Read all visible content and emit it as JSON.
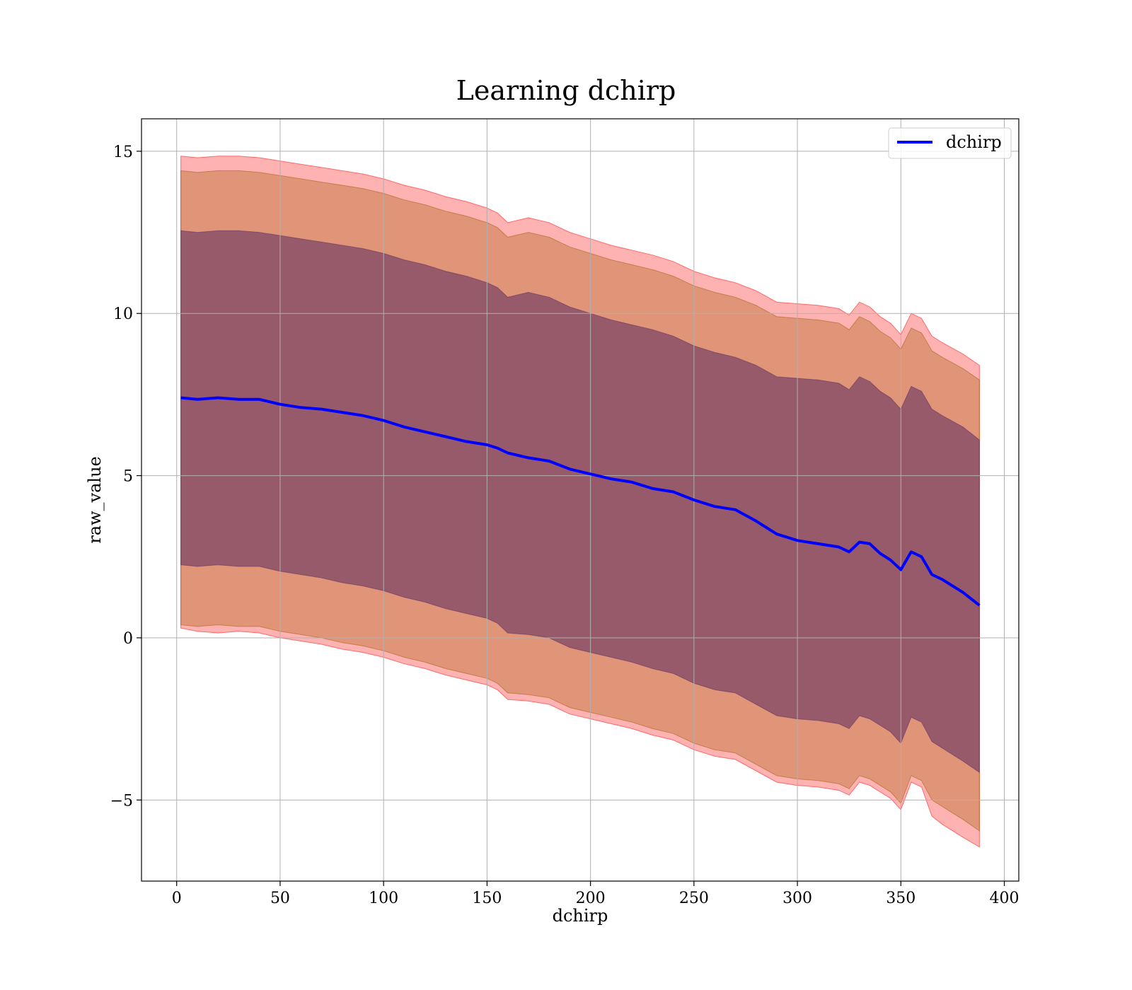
{
  "chart_data": {
    "type": "line",
    "title": "Learning dchirp",
    "xlabel": "dchirp",
    "ylabel": "raw_value",
    "xlim": [
      -17,
      407
    ],
    "ylim": [
      -7.5,
      16
    ],
    "xticks": [
      0,
      50,
      100,
      150,
      200,
      250,
      300,
      350,
      400
    ],
    "xtick_labels": [
      "0",
      "50",
      "100",
      "150",
      "200",
      "250",
      "300",
      "350",
      "400"
    ],
    "yticks": [
      -5,
      0,
      5,
      10,
      15
    ],
    "ytick_labels": [
      "−5",
      "0",
      "5",
      "10",
      "15"
    ],
    "grid": true,
    "legend": {
      "position": "top-right",
      "entries": [
        "dchirp"
      ]
    },
    "colors": {
      "line": "#0000ff",
      "outer_band": "#ff0000",
      "middle_band": "#a05a00",
      "inner_band": "#5a2a60"
    },
    "series": [
      {
        "name": "dchirp",
        "x": [
          2,
          10,
          20,
          30,
          40,
          50,
          60,
          70,
          80,
          90,
          100,
          110,
          120,
          130,
          140,
          150,
          155,
          160,
          170,
          180,
          190,
          200,
          210,
          220,
          230,
          240,
          250,
          260,
          270,
          280,
          290,
          300,
          310,
          320,
          325,
          330,
          335,
          340,
          345,
          350,
          355,
          360,
          365,
          370,
          380,
          388
        ],
        "mean": [
          7.4,
          7.35,
          7.4,
          7.35,
          7.35,
          7.2,
          7.1,
          7.05,
          6.95,
          6.85,
          6.7,
          6.5,
          6.35,
          6.2,
          6.05,
          5.95,
          5.85,
          5.7,
          5.55,
          5.45,
          5.2,
          5.05,
          4.9,
          4.8,
          4.6,
          4.5,
          4.25,
          4.05,
          3.95,
          3.6,
          3.2,
          3.0,
          2.9,
          2.8,
          2.65,
          2.95,
          2.9,
          2.6,
          2.4,
          2.1,
          2.65,
          2.5,
          1.95,
          1.8,
          1.4,
          1.0
        ]
      }
    ],
    "bands": [
      {
        "level": "outer",
        "x": [
          2,
          10,
          20,
          30,
          40,
          50,
          60,
          70,
          80,
          90,
          100,
          110,
          120,
          130,
          140,
          150,
          155,
          160,
          170,
          180,
          190,
          200,
          210,
          220,
          230,
          240,
          250,
          260,
          270,
          280,
          290,
          300,
          310,
          320,
          325,
          330,
          335,
          340,
          345,
          350,
          355,
          360,
          365,
          370,
          380,
          388
        ],
        "upper": [
          14.85,
          14.8,
          14.85,
          14.85,
          14.8,
          14.7,
          14.6,
          14.5,
          14.4,
          14.3,
          14.15,
          13.95,
          13.8,
          13.6,
          13.45,
          13.25,
          13.1,
          12.8,
          12.95,
          12.8,
          12.5,
          12.3,
          12.1,
          11.95,
          11.8,
          11.6,
          11.3,
          11.1,
          10.95,
          10.7,
          10.35,
          10.3,
          10.25,
          10.15,
          9.95,
          10.35,
          10.2,
          9.9,
          9.7,
          9.35,
          10.0,
          9.85,
          9.3,
          9.1,
          8.75,
          8.4
        ],
        "lower": [
          0.3,
          0.2,
          0.15,
          0.2,
          0.15,
          0.0,
          -0.1,
          -0.2,
          -0.35,
          -0.45,
          -0.6,
          -0.8,
          -0.95,
          -1.15,
          -1.3,
          -1.45,
          -1.6,
          -1.9,
          -1.95,
          -2.05,
          -2.35,
          -2.5,
          -2.65,
          -2.8,
          -3.0,
          -3.15,
          -3.45,
          -3.65,
          -3.75,
          -4.1,
          -4.45,
          -4.55,
          -4.6,
          -4.7,
          -4.85,
          -4.45,
          -4.55,
          -4.75,
          -4.95,
          -5.3,
          -4.45,
          -4.6,
          -5.5,
          -5.75,
          -6.15,
          -6.45
        ]
      },
      {
        "level": "middle",
        "x": [
          2,
          10,
          20,
          30,
          40,
          50,
          60,
          70,
          80,
          90,
          100,
          110,
          120,
          130,
          140,
          150,
          155,
          160,
          170,
          180,
          190,
          200,
          210,
          220,
          230,
          240,
          250,
          260,
          270,
          280,
          290,
          300,
          310,
          320,
          325,
          330,
          335,
          340,
          345,
          350,
          355,
          360,
          365,
          370,
          380,
          388
        ],
        "upper": [
          14.4,
          14.35,
          14.4,
          14.4,
          14.35,
          14.25,
          14.15,
          14.05,
          13.95,
          13.85,
          13.7,
          13.5,
          13.35,
          13.15,
          13.0,
          12.8,
          12.65,
          12.35,
          12.5,
          12.35,
          12.05,
          11.85,
          11.65,
          11.5,
          11.35,
          11.15,
          10.85,
          10.65,
          10.5,
          10.25,
          9.9,
          9.85,
          9.8,
          9.7,
          9.5,
          9.9,
          9.75,
          9.45,
          9.25,
          8.9,
          9.55,
          9.4,
          8.85,
          8.65,
          8.3,
          7.95
        ],
        "lower": [
          0.4,
          0.35,
          0.4,
          0.35,
          0.35,
          0.2,
          0.1,
          0.0,
          -0.15,
          -0.25,
          -0.4,
          -0.6,
          -0.75,
          -0.95,
          -1.1,
          -1.25,
          -1.4,
          -1.7,
          -1.75,
          -1.85,
          -2.15,
          -2.3,
          -2.45,
          -2.6,
          -2.8,
          -2.95,
          -3.25,
          -3.45,
          -3.55,
          -3.9,
          -4.25,
          -4.35,
          -4.4,
          -4.5,
          -4.65,
          -4.25,
          -4.35,
          -4.55,
          -4.75,
          -5.1,
          -4.25,
          -4.4,
          -5.0,
          -5.2,
          -5.6,
          -5.95
        ]
      },
      {
        "level": "inner",
        "x": [
          2,
          10,
          20,
          30,
          40,
          50,
          60,
          70,
          80,
          90,
          100,
          110,
          120,
          130,
          140,
          150,
          155,
          160,
          170,
          180,
          190,
          200,
          210,
          220,
          230,
          240,
          250,
          260,
          270,
          280,
          290,
          300,
          310,
          320,
          325,
          330,
          335,
          340,
          345,
          350,
          355,
          360,
          365,
          370,
          380,
          388
        ],
        "upper": [
          12.55,
          12.5,
          12.55,
          12.55,
          12.5,
          12.4,
          12.3,
          12.2,
          12.1,
          12.0,
          11.85,
          11.65,
          11.5,
          11.3,
          11.15,
          10.95,
          10.8,
          10.5,
          10.65,
          10.5,
          10.2,
          10.0,
          9.8,
          9.65,
          9.5,
          9.3,
          9.0,
          8.8,
          8.65,
          8.4,
          8.05,
          8.0,
          7.95,
          7.85,
          7.65,
          8.05,
          7.9,
          7.6,
          7.4,
          7.05,
          7.75,
          7.6,
          7.05,
          6.85,
          6.5,
          6.1
        ],
        "lower": [
          2.25,
          2.2,
          2.25,
          2.2,
          2.2,
          2.05,
          1.95,
          1.85,
          1.7,
          1.6,
          1.45,
          1.25,
          1.1,
          0.9,
          0.75,
          0.6,
          0.45,
          0.15,
          0.1,
          0.0,
          -0.3,
          -0.45,
          -0.6,
          -0.75,
          -0.95,
          -1.1,
          -1.4,
          -1.6,
          -1.7,
          -2.05,
          -2.4,
          -2.5,
          -2.55,
          -2.65,
          -2.8,
          -2.4,
          -2.5,
          -2.7,
          -2.9,
          -3.25,
          -2.45,
          -2.6,
          -3.2,
          -3.4,
          -3.8,
          -4.15
        ]
      }
    ]
  }
}
